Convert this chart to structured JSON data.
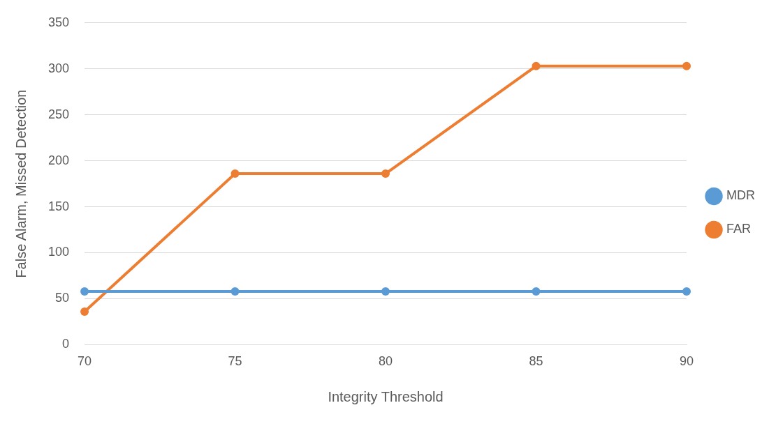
{
  "chart_data": {
    "type": "line",
    "xlabel": "Integrity Threshold",
    "ylabel": "False Alarm, Missed Detection",
    "categories": [
      "70",
      "75",
      "80",
      "85",
      "90"
    ],
    "series": [
      {
        "name": "MDR",
        "color": "#5b9bd5",
        "values": [
          58,
          58,
          58,
          58,
          58
        ]
      },
      {
        "name": "FAR",
        "color": "#ed7d31",
        "values": [
          36,
          186,
          186,
          303,
          303
        ]
      }
    ],
    "ylim": [
      0,
      350
    ],
    "yticks": [
      0,
      50,
      100,
      150,
      200,
      250,
      300,
      350
    ],
    "grid": "y",
    "legend": "right",
    "marker": "circle",
    "line_style": "solid"
  }
}
